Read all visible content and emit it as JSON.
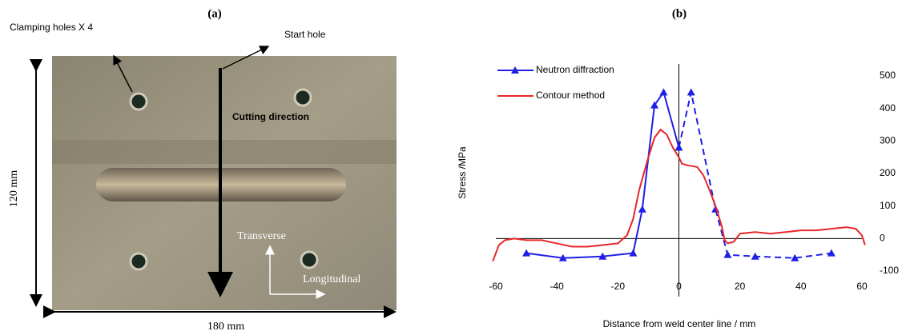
{
  "panel_a": {
    "label": "(a)",
    "clamping_holes": "Clamping holes X 4",
    "start_hole": "Start hole",
    "cutting_direction": "Cutting direction",
    "height": "120 mm",
    "width": "180 mm",
    "transverse": "Transverse",
    "longitudinal": "Longitudinal"
  },
  "chart_data": {
    "type": "line",
    "title": "(b)",
    "x_label": "Distance from weld center line / mm",
    "y_label": "Stress /MPa",
    "xlim": [
      -60,
      60
    ],
    "xticks": [
      -60,
      -40,
      -20,
      0,
      20,
      40,
      60
    ],
    "ylim": [
      -100,
      500
    ],
    "yticks": [
      -100,
      0,
      100,
      200,
      300,
      400,
      500
    ],
    "legend": "upper left",
    "series": [
      {
        "name": "Neutron diffraction",
        "color": "#1f1fe6",
        "marker": "triangle",
        "x": [
          -50,
          -38,
          -25,
          -15,
          -12,
          -8,
          -5,
          0
        ],
        "values": [
          -45,
          -60,
          -55,
          -45,
          90,
          410,
          450,
          280
        ]
      },
      {
        "color": "#1f1fe6",
        "marker": "triangle",
        "dash": true,
        "x": [
          0,
          4,
          12,
          16,
          25,
          38,
          50
        ],
        "values": [
          280,
          450,
          90,
          -50,
          -55,
          -60,
          -45
        ]
      },
      {
        "name": "Contour method",
        "color": "#e8262a",
        "x": [
          -61,
          -59,
          -57,
          -54,
          -50,
          -45,
          -40,
          -35,
          -30,
          -25,
          -20,
          -17,
          -15,
          -13,
          -10,
          -8,
          -6,
          -4,
          -2,
          0,
          1,
          3,
          6,
          8,
          10,
          12,
          14,
          15,
          16,
          18,
          20,
          25,
          30,
          35,
          40,
          45,
          50,
          55,
          58,
          60,
          61
        ],
        "values": [
          -70,
          -20,
          -5,
          0,
          -5,
          -5,
          -15,
          -25,
          -25,
          -20,
          -15,
          10,
          60,
          150,
          250,
          310,
          335,
          320,
          280,
          250,
          230,
          225,
          220,
          195,
          150,
          100,
          40,
          -5,
          -15,
          -10,
          15,
          20,
          15,
          20,
          25,
          25,
          30,
          35,
          30,
          10,
          -20
        ]
      }
    ]
  }
}
